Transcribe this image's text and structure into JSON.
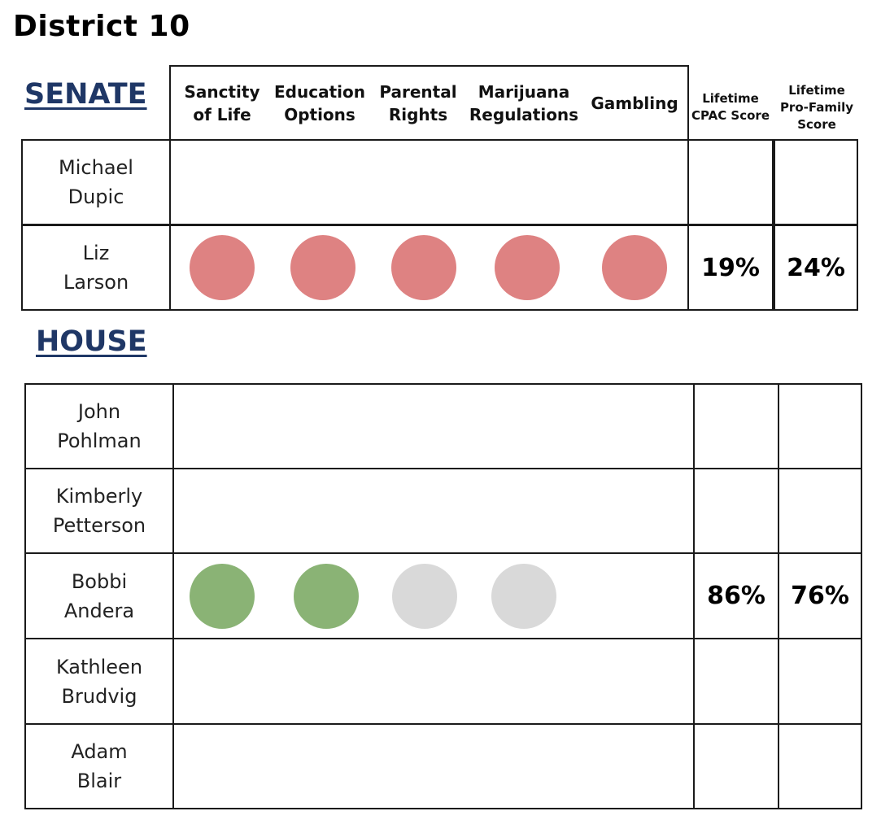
{
  "district_title": "District 10",
  "colors": {
    "opposed": "#de8282",
    "support": "#8ab375",
    "unknown": "#d9d9d9",
    "section_heading": "#1f3766"
  },
  "senate": {
    "label": "SENATE",
    "issues": [
      "Sanctity of Life",
      "Education Options",
      "Parental Rights",
      "Marijuana Regulations",
      "Gambling"
    ],
    "score_headers": [
      "Lifetime CPAC Score",
      "Lifetime Pro-Family Score"
    ],
    "candidates": [
      {
        "name_line1": "Michael",
        "name_line2": "Dupic",
        "ratings": [],
        "cpac": "",
        "pro_family": ""
      },
      {
        "name_line1": "Liz",
        "name_line2": "Larson",
        "ratings": [
          "opposed",
          "opposed",
          "opposed",
          "opposed",
          "opposed"
        ],
        "cpac": "19%",
        "pro_family": "24%"
      }
    ]
  },
  "house": {
    "label": "HOUSE",
    "candidates": [
      {
        "name_line1": "John",
        "name_line2": "Pohlman",
        "ratings": [],
        "cpac": "",
        "pro_family": ""
      },
      {
        "name_line1": "Kimberly",
        "name_line2": "Petterson",
        "ratings": [],
        "cpac": "",
        "pro_family": ""
      },
      {
        "name_line1": "Bobbi",
        "name_line2": "Andera",
        "ratings": [
          "support",
          "support",
          "unknown",
          "unknown"
        ],
        "cpac": "86%",
        "pro_family": "76%"
      },
      {
        "name_line1": "Kathleen",
        "name_line2": "Brudvig",
        "ratings": [],
        "cpac": "",
        "pro_family": ""
      },
      {
        "name_line1": "Adam",
        "name_line2": "Blair",
        "ratings": [],
        "cpac": "",
        "pro_family": ""
      }
    ]
  }
}
